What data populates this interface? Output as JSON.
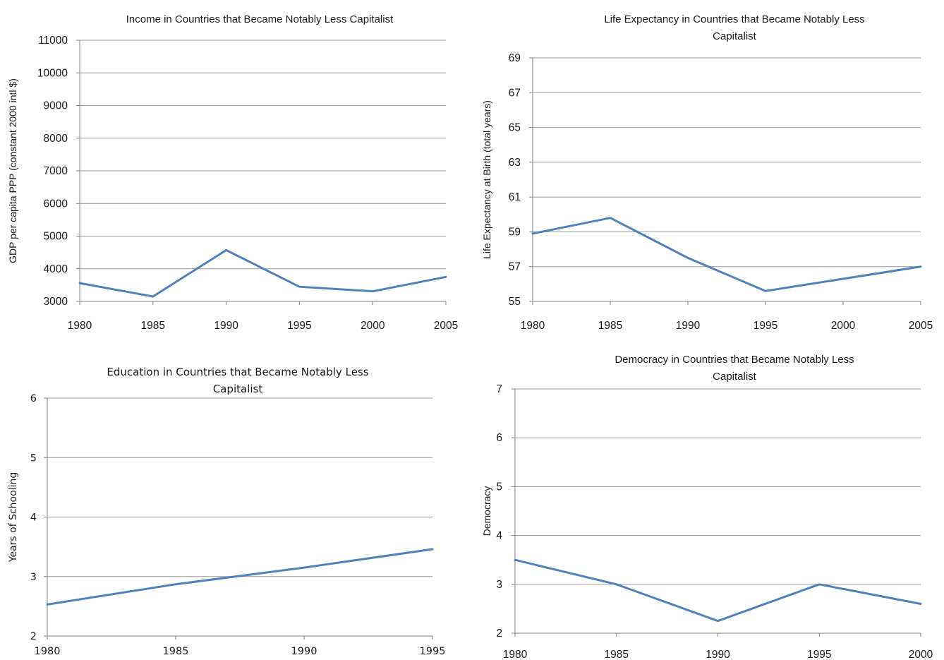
{
  "chart_data": [
    {
      "type": "line",
      "title": [
        "Income in Countries that Became Notably Less Capitalist"
      ],
      "ylabel": "GDP per  capita PPP (constant 2000 intl $)",
      "xlabel": "",
      "categories": [
        "1980",
        "1985",
        "1990",
        "1995",
        "2000",
        "2005"
      ],
      "series": [
        {
          "values": [
            3560,
            3150,
            4570,
            3450,
            3310,
            3750
          ]
        }
      ],
      "ylim": [
        3000,
        11000
      ],
      "yticks": [
        "3000",
        "4000",
        "5000",
        "6000",
        "7000",
        "8000",
        "9000",
        "10000",
        "11000"
      ],
      "grid": true,
      "color": "#4f81bd"
    },
    {
      "type": "line",
      "title": [
        "Life Expectancy in Countries that Became Notably Less",
        "Capitalist"
      ],
      "ylabel": "Life Expectancy at Birth (total years)",
      "xlabel": "",
      "categories": [
        "1980",
        "1985",
        "1990",
        "1995",
        "2000",
        "2005"
      ],
      "series": [
        {
          "values": [
            58.9,
            59.8,
            57.5,
            55.6,
            56.3,
            57.0
          ]
        }
      ],
      "ylim": [
        55,
        69
      ],
      "yticks": [
        "55",
        "57",
        "59",
        "61",
        "63",
        "65",
        "67",
        "69"
      ],
      "grid": true,
      "color": "#4f81bd"
    },
    {
      "type": "line",
      "title": [
        "Education in Countries that Became Notably Less",
        "Capitalist"
      ],
      "ylabel": "Years of Schooling",
      "xlabel": "",
      "categories": [
        "1980",
        "1985",
        "1990",
        "1995"
      ],
      "series": [
        {
          "values": [
            2.53,
            2.87,
            3.15,
            3.46
          ]
        }
      ],
      "ylim": [
        2,
        6
      ],
      "yticks": [
        "2",
        "3",
        "4",
        "5",
        "6"
      ],
      "grid": true,
      "color": "#4f81bd"
    },
    {
      "type": "line",
      "title": [
        "Democracy in Countries that Became Notably Less",
        "Capitalist"
      ],
      "ylabel": "Democracy",
      "xlabel": "",
      "categories": [
        "1980",
        "1985",
        "1990",
        "1995",
        "2000"
      ],
      "series": [
        {
          "values": [
            3.5,
            3.0,
            2.25,
            3.0,
            2.6
          ]
        }
      ],
      "ylim": [
        2,
        7
      ],
      "yticks": [
        "2",
        "3",
        "4",
        "5",
        "6",
        "7"
      ],
      "grid": true,
      "color": "#4f81bd"
    }
  ]
}
